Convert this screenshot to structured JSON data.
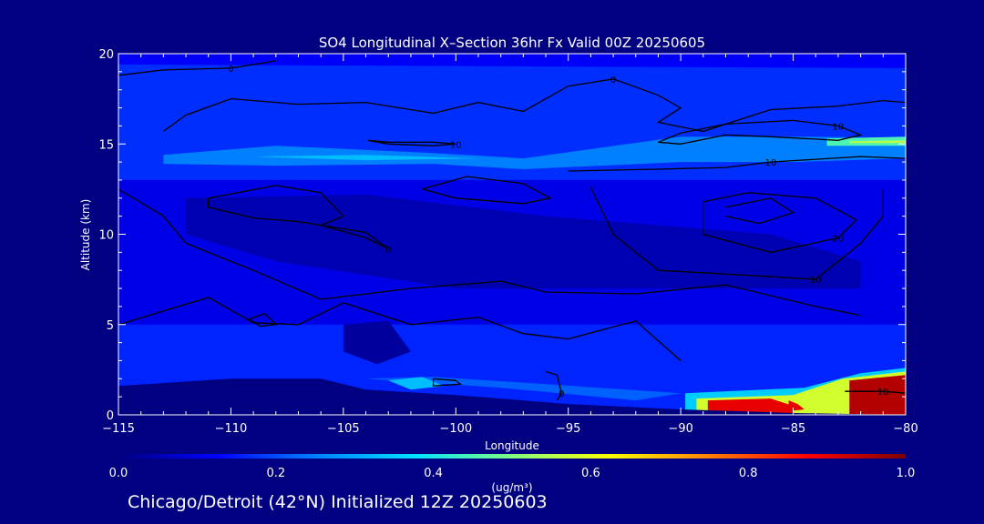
{
  "chart_data": {
    "type": "heatmap",
    "title": "SO4 Longitudinal X–Section 36hr  Fx Valid 00Z 20250605",
    "xlabel": "Longitude",
    "ylabel": "Altitude (km)",
    "xlim": [
      -115,
      -80
    ],
    "ylim": [
      0,
      20
    ],
    "x_ticks": [
      -115,
      -110,
      -105,
      -100,
      -95,
      -90,
      -85,
      -80
    ],
    "y_ticks": [
      0,
      5,
      10,
      15,
      20
    ],
    "x_tick_labels": [
      "−115",
      "−110",
      "−105",
      "−100",
      "−95",
      "−90",
      "−85",
      "−80"
    ],
    "y_tick_labels": [
      "0",
      "5",
      "10",
      "15",
      "20"
    ],
    "grid": false,
    "background_color": "#000080",
    "colorbar": {
      "label": "(ug/m³)",
      "min": 0.0,
      "max": 1.0,
      "tick_values": [
        0.0,
        0.2,
        0.4,
        0.6,
        0.8,
        1.0
      ],
      "tick_labels": [
        "0.0",
        "0.2",
        "0.4",
        "0.6",
        "0.8",
        "1.0"
      ],
      "colors": [
        "#000080",
        "#0000ff",
        "#0080ff",
        "#00e0ff",
        "#80ff80",
        "#ffff00",
        "#ff8000",
        "#ff0000",
        "#800000"
      ]
    },
    "concentration_regions": [
      {
        "name": "upper layer",
        "points": [
          [
            -115,
            20
          ],
          [
            -80,
            20
          ],
          [
            -80,
            13
          ],
          [
            -115,
            13
          ]
        ],
        "value": 0.17
      },
      {
        "name": "mid layer",
        "points": [
          [
            -115,
            13
          ],
          [
            -80,
            13
          ],
          [
            -80,
            5
          ],
          [
            -115,
            5
          ]
        ],
        "value": 0.1
      },
      {
        "name": "lower layer",
        "points": [
          [
            -115,
            5
          ],
          [
            -80,
            5
          ],
          [
            -80,
            0
          ],
          [
            -115,
            0
          ]
        ],
        "value": 0.16
      },
      {
        "name": "band at 15 km",
        "points": [
          [
            -113,
            14.4
          ],
          [
            -108,
            14.9
          ],
          [
            -101,
            14.5
          ],
          [
            -97,
            14.2
          ],
          [
            -90,
            15.4
          ],
          [
            -84,
            15.4
          ],
          [
            -80,
            15.3
          ],
          [
            -80,
            14.2
          ],
          [
            -85,
            14.0
          ],
          [
            -90,
            14.0
          ],
          [
            -97,
            13.6
          ],
          [
            -101,
            13.9
          ],
          [
            -108,
            13.8
          ],
          [
            -113,
            13.9
          ]
        ],
        "value": 0.25
      },
      {
        "name": "band core",
        "points": [
          [
            -109,
            14.3
          ],
          [
            -104,
            14.4
          ],
          [
            -99,
            14.2
          ],
          [
            -104,
            14.1
          ]
        ],
        "value": 0.33
      },
      {
        "name": "eastern band core",
        "points": [
          [
            -83.5,
            15.3
          ],
          [
            -80,
            15.4
          ],
          [
            -80,
            14.9
          ],
          [
            -83.5,
            14.9
          ]
        ],
        "value": 0.45
      },
      {
        "name": "eastern band peak",
        "points": [
          [
            -82.5,
            15.15
          ],
          [
            -80,
            15.2
          ],
          [
            -80,
            15.05
          ],
          [
            -82.5,
            15.05
          ]
        ],
        "value": 0.55
      },
      {
        "name": "top edge",
        "points": [
          [
            -115,
            20
          ],
          [
            -80,
            20
          ],
          [
            -80,
            19.2
          ],
          [
            -115,
            19.4
          ]
        ],
        "value": 0.12
      },
      {
        "name": "dark pool upper",
        "points": [
          [
            -112,
            12
          ],
          [
            -104,
            12.2
          ],
          [
            -96,
            11
          ],
          [
            -86,
            10
          ],
          [
            -82,
            8.5
          ],
          [
            -82,
            7
          ],
          [
            -90,
            7
          ],
          [
            -100,
            7
          ],
          [
            -108,
            8.5
          ],
          [
            -112,
            10
          ]
        ],
        "value": 0.05
      },
      {
        "name": "dark blob low",
        "points": [
          [
            -105,
            5
          ],
          [
            -103,
            5.2
          ],
          [
            -102,
            3.5
          ],
          [
            -103.5,
            2.8
          ],
          [
            -105,
            3.5
          ]
        ],
        "value": 0.03
      },
      {
        "name": "near surface lighter",
        "points": [
          [
            -104,
            2
          ],
          [
            -98,
            1.5
          ],
          [
            -92,
            0.8
          ],
          [
            -90,
            1.2
          ],
          [
            -96,
            1.7
          ],
          [
            -101,
            2.1
          ]
        ],
        "value": 0.22
      },
      {
        "name": "cyan pocket",
        "points": [
          [
            -103,
            1.9
          ],
          [
            -101.5,
            2.1
          ],
          [
            -100.5,
            1.6
          ],
          [
            -102,
            1.4
          ]
        ],
        "value": 0.33
      },
      {
        "name": "cyan east",
        "points": [
          [
            -89.8,
            1.2
          ],
          [
            -84.5,
            1.5
          ],
          [
            -82,
            2.3
          ],
          [
            -80,
            2.6
          ],
          [
            -80,
            0
          ],
          [
            -89.8,
            0
          ]
        ],
        "value": 0.35
      },
      {
        "name": "yellow east",
        "points": [
          [
            -89.3,
            0.9
          ],
          [
            -85,
            1.1
          ],
          [
            -82.8,
            2
          ],
          [
            -80,
            2.4
          ],
          [
            -80,
            0
          ],
          [
            -89.3,
            0
          ]
        ],
        "value": 0.58
      },
      {
        "name": "hot core west",
        "points": [
          [
            -88.8,
            0.8
          ],
          [
            -86,
            0.9
          ],
          [
            -85,
            0.5
          ],
          [
            -85,
            0
          ],
          [
            -88.8,
            0
          ]
        ],
        "value": 0.9
      },
      {
        "name": "hot core east",
        "points": [
          [
            -82.5,
            1.9
          ],
          [
            -80,
            2.2
          ],
          [
            -80,
            0
          ],
          [
            -82.5,
            0
          ]
        ],
        "value": 0.95
      },
      {
        "name": "hot core mid",
        "points": [
          [
            -85.2,
            0.8
          ],
          [
            -84.8,
            0.6
          ],
          [
            -84.5,
            0.3
          ],
          [
            -85.2,
            0.2
          ]
        ],
        "value": 0.9
      }
    ],
    "contours": [
      {
        "label": "0",
        "points": [
          [
            -115,
            18.8
          ],
          [
            -113,
            19.1
          ],
          [
            -110,
            19.2
          ],
          [
            -108,
            19.6
          ]
        ]
      },
      {
        "label": "10",
        "points": [
          [
            -103.9,
            15.2
          ],
          [
            -103,
            15.1
          ],
          [
            -101,
            15.1
          ],
          [
            -100,
            15
          ],
          [
            -101,
            14.9
          ],
          [
            -103,
            15
          ],
          [
            -103.9,
            15.2
          ]
        ]
      },
      {
        "label": "0",
        "points": [
          [
            -113,
            15.7
          ],
          [
            -112,
            16.6
          ],
          [
            -110,
            17.5
          ],
          [
            -107,
            17.2
          ],
          [
            -104,
            17.3
          ],
          [
            -101,
            16.7
          ],
          [
            -99,
            17.3
          ],
          [
            -97,
            16.8
          ],
          [
            -95,
            18.2
          ],
          [
            -93,
            18.6
          ],
          [
            -91,
            17.7
          ],
          [
            -90,
            17
          ],
          [
            -91,
            16.2
          ],
          [
            -89,
            15.7
          ],
          [
            -86,
            16.9
          ],
          [
            -83,
            17.1
          ],
          [
            -81,
            17.4
          ],
          [
            -80,
            17.3
          ]
        ]
      },
      {
        "label": "10",
        "points": [
          [
            -90,
            15
          ],
          [
            -88,
            15.5
          ],
          [
            -86,
            15.4
          ],
          [
            -83,
            15.2
          ],
          [
            -82,
            15.5
          ],
          [
            -83,
            16
          ],
          [
            -85,
            16.3
          ],
          [
            -88,
            16.1
          ],
          [
            -90,
            15.6
          ],
          [
            -91,
            15.1
          ],
          [
            -90,
            15
          ]
        ]
      },
      {
        "label": "10",
        "points": [
          [
            -95,
            13.5
          ],
          [
            -91,
            13.6
          ],
          [
            -88,
            13.7
          ],
          [
            -86,
            14
          ],
          [
            -82,
            14.3
          ],
          [
            -80,
            14.2
          ]
        ]
      },
      {
        "label": "0",
        "points": [
          [
            -111,
            12
          ],
          [
            -108,
            12.7
          ],
          [
            -106,
            12.3
          ],
          [
            -105,
            11
          ],
          [
            -106,
            10.5
          ],
          [
            -104,
            9.8
          ],
          [
            -103,
            9.2
          ],
          [
            -104,
            10.1
          ],
          [
            -107,
            10.7
          ],
          [
            -109,
            10.9
          ],
          [
            -111,
            11.5
          ],
          [
            -111,
            12
          ]
        ]
      },
      {
        "label": "",
        "points": [
          [
            -101.5,
            12.5
          ],
          [
            -99.5,
            13.2
          ],
          [
            -97,
            12.8
          ],
          [
            -95.8,
            12
          ],
          [
            -97,
            11.7
          ],
          [
            -100,
            12
          ],
          [
            -101.5,
            12.5
          ]
        ]
      },
      {
        "label": "20",
        "points": [
          [
            -89,
            11.8
          ],
          [
            -87,
            12.3
          ],
          [
            -84,
            12
          ],
          [
            -82.2,
            10.8
          ],
          [
            -83,
            9.8
          ],
          [
            -86,
            9
          ],
          [
            -89,
            10
          ],
          [
            -89,
            11.8
          ]
        ]
      },
      {
        "label": "",
        "points": [
          [
            -88,
            11.5
          ],
          [
            -86,
            12
          ],
          [
            -85,
            11.2
          ],
          [
            -86.5,
            10.6
          ],
          [
            -88,
            11
          ]
        ]
      },
      {
        "label": "10",
        "points": [
          [
            -94,
            12.6
          ],
          [
            -93,
            10
          ],
          [
            -91,
            8
          ],
          [
            -88,
            7.8
          ],
          [
            -84,
            7.5
          ],
          [
            -82,
            9.5
          ],
          [
            -81,
            11
          ],
          [
            -81,
            12.5
          ]
        ]
      },
      {
        "label": "",
        "points": [
          [
            -115,
            12.5
          ],
          [
            -113,
            11
          ],
          [
            -112,
            9.5
          ],
          [
            -109,
            8
          ],
          [
            -106,
            6.4
          ],
          [
            -102,
            7
          ],
          [
            -98,
            7.4
          ],
          [
            -96,
            6.8
          ],
          [
            -92,
            6.7
          ],
          [
            -88,
            7.2
          ],
          [
            -84,
            6
          ],
          [
            -82,
            5.5
          ]
        ]
      },
      {
        "label": "",
        "points": [
          [
            -115,
            5
          ],
          [
            -111,
            6.5
          ],
          [
            -109,
            5.1
          ],
          [
            -107,
            5
          ],
          [
            -105,
            6.2
          ],
          [
            -102,
            5
          ],
          [
            -99,
            5.4
          ],
          [
            -97,
            4.5
          ],
          [
            -95,
            4.2
          ],
          [
            -92,
            5.2
          ],
          [
            -90,
            3
          ]
        ]
      },
      {
        "label": "",
        "points": [
          [
            -109.2,
            5.3
          ],
          [
            -108.5,
            5.6
          ],
          [
            -108,
            5
          ],
          [
            -108.7,
            4.9
          ],
          [
            -109.2,
            5.3
          ]
        ]
      },
      {
        "label": "",
        "points": [
          [
            -101,
            2
          ],
          [
            -100,
            1.9
          ],
          [
            -99.8,
            1.7
          ],
          [
            -101,
            1.6
          ],
          [
            -101,
            2
          ]
        ]
      },
      {
        "label": "0",
        "points": [
          [
            -96,
            2.4
          ],
          [
            -95.5,
            2.2
          ],
          [
            -95.3,
            1.2
          ],
          [
            -95.5,
            0.8
          ]
        ]
      },
      {
        "label": "10",
        "points": [
          [
            -82.7,
            1.3
          ],
          [
            -81,
            1.3
          ],
          [
            -80,
            1.2
          ]
        ]
      }
    ],
    "terrain": [
      [
        -115,
        1.6
      ],
      [
        -110,
        2
      ],
      [
        -106,
        2
      ],
      [
        -104,
        1.4
      ],
      [
        -100,
        1.1
      ],
      [
        -95,
        0.6
      ],
      [
        -90,
        0.3
      ],
      [
        -85,
        0.1
      ],
      [
        -80,
        0
      ]
    ]
  },
  "footer_text": "Chicago/Detroit (42°N) Initialized 12Z 20250603"
}
